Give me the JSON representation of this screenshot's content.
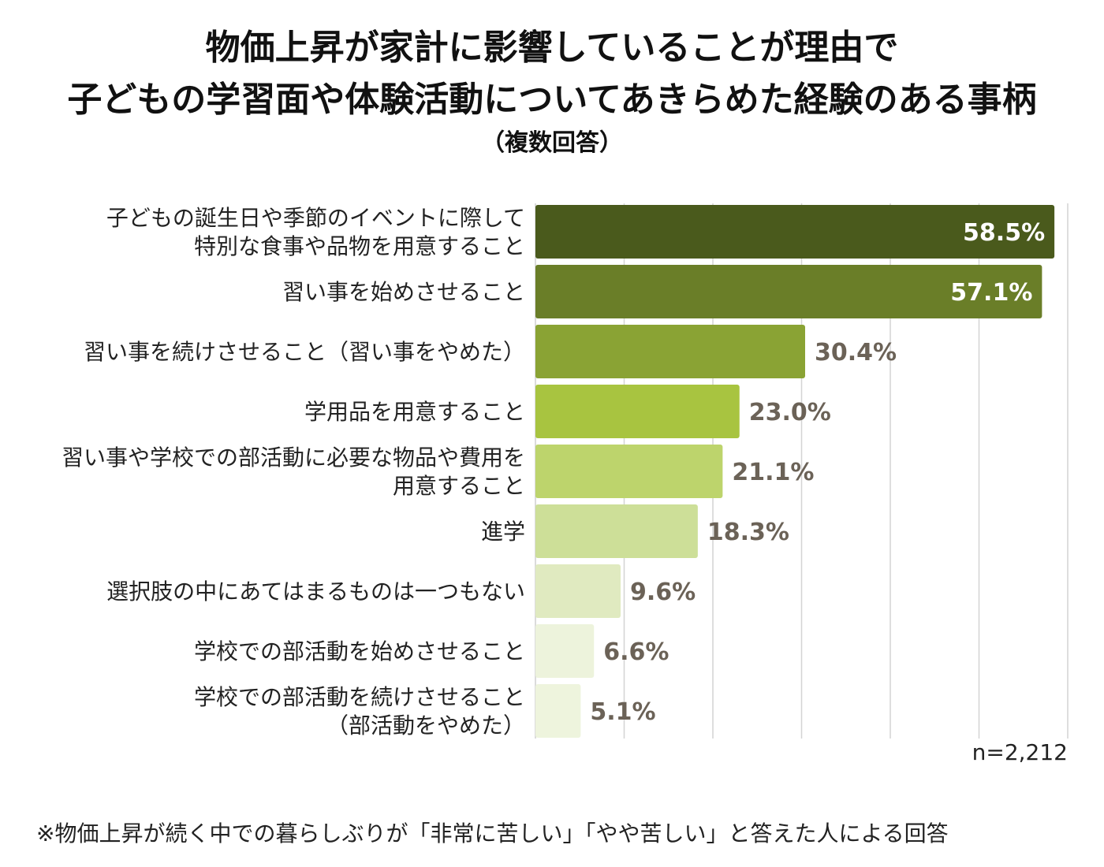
{
  "title_line1": "物価上昇が家計に影響していることが理由で",
  "title_line2": "子どもの学習面や体験活動についてあきらめた経験のある事柄",
  "title_line3": "（複数回答）",
  "n_label": "n=2,212",
  "footnote": "※物価上昇が続く中での暮らしぶりが「非常に苦しい」「やや苦しい」と答えた人による回答",
  "chart_data": {
    "type": "bar",
    "orientation": "horizontal",
    "categories": [
      [
        "子どもの誕生日や季節のイベントに際して",
        "特別な食事や品物を用意すること"
      ],
      [
        "習い事を始めさせること"
      ],
      [
        "習い事を続けさせること（習い事をやめた）"
      ],
      [
        "学用品を用意すること"
      ],
      [
        "習い事や学校での部活動に必要な物品や費用を",
        "用意すること"
      ],
      [
        "進学"
      ],
      [
        "選択肢の中にあてはまるものは一つもない"
      ],
      [
        "学校での部活動を始めさせること"
      ],
      [
        "学校での部活動を続けさせること",
        "（部活動をやめた）"
      ]
    ],
    "values": [
      58.5,
      57.1,
      30.4,
      23.0,
      21.1,
      18.3,
      9.6,
      6.6,
      5.1
    ],
    "value_labels": [
      "58.5%",
      "57.1%",
      "30.4%",
      "23.0%",
      "21.1%",
      "18.3%",
      "9.6%",
      "6.6%",
      "5.1%"
    ],
    "bar_colors": [
      "#4a5a1c",
      "#6a7e28",
      "#8aa334",
      "#a8c440",
      "#bdd46c",
      "#cddf98",
      "#e0eac0",
      "#edf3dc",
      "#eef4dd"
    ],
    "label_colors": [
      "#ffffff",
      "#ffffff",
      "#6b6257",
      "#6b6257",
      "#6b6257",
      "#6b6257",
      "#6b6257",
      "#6b6257",
      "#6b6257"
    ],
    "xlim": [
      0,
      60
    ],
    "grid": true
  }
}
